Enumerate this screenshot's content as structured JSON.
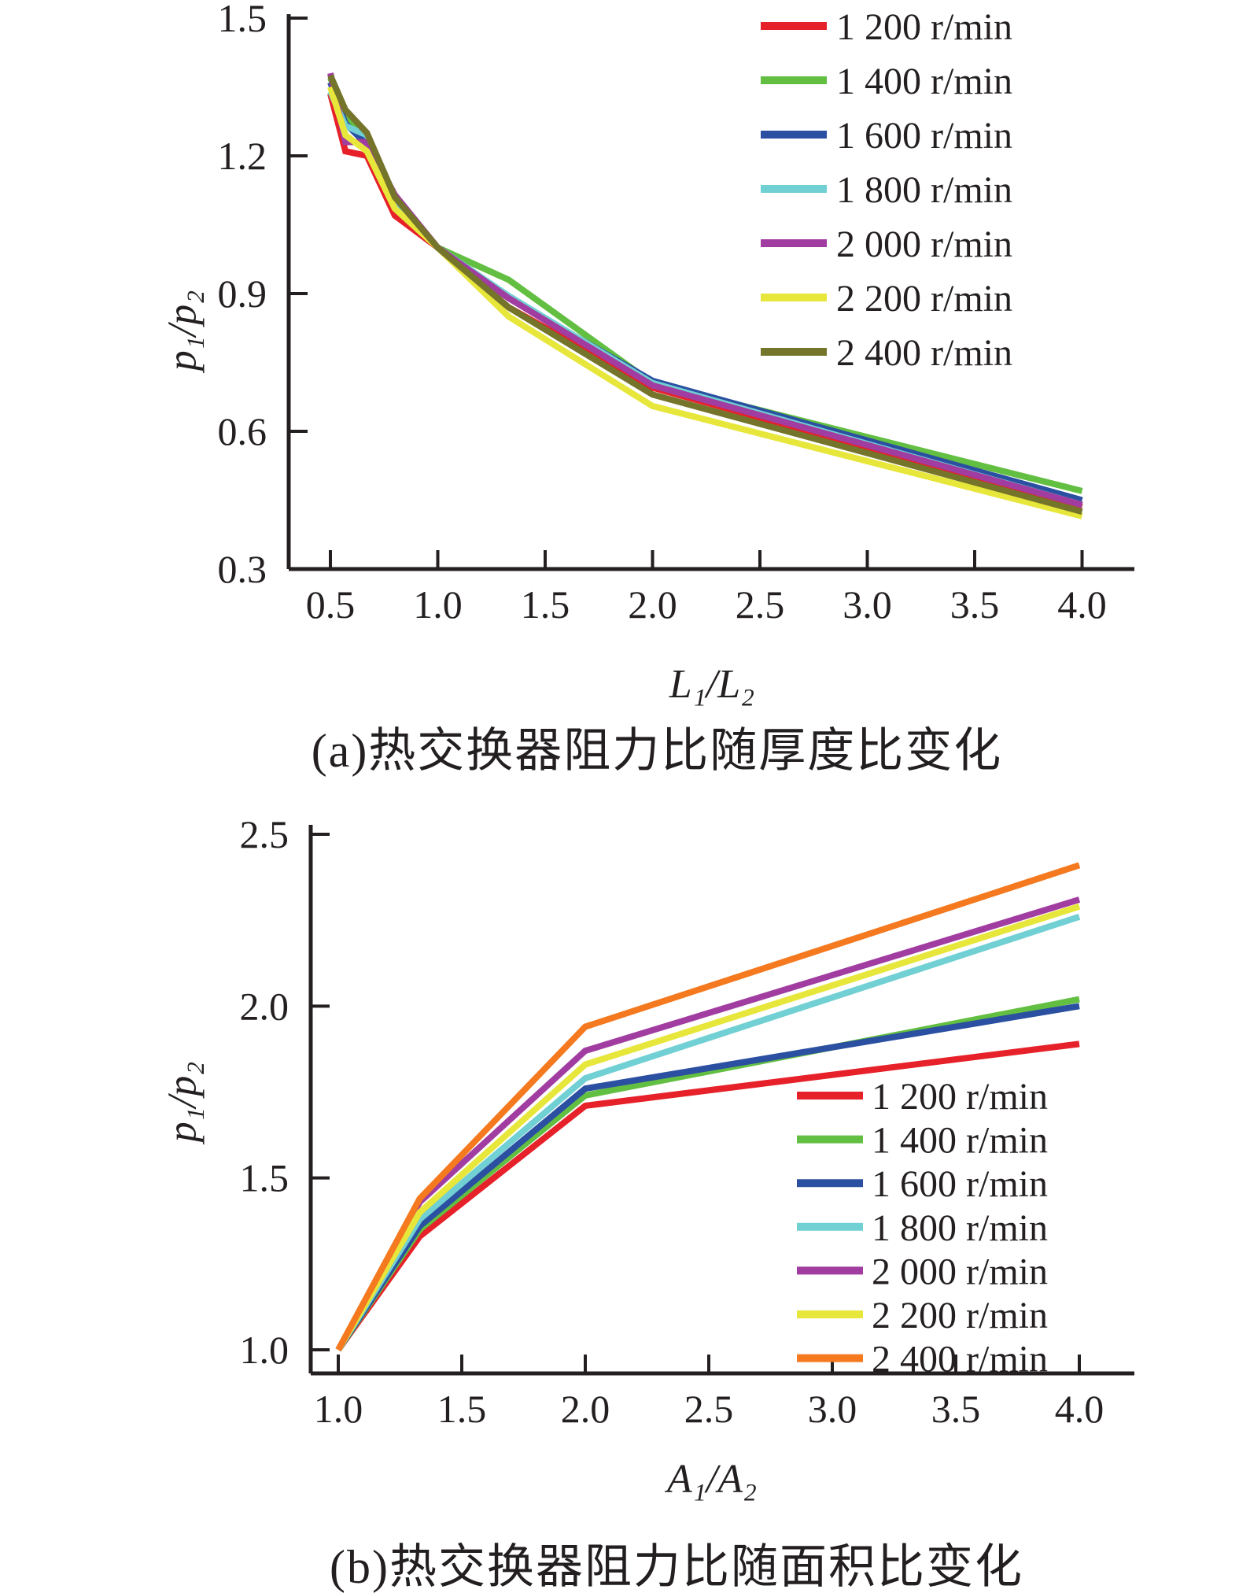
{
  "page": {
    "background": "#ffffff",
    "text_color": "#231f20",
    "axis_color": "#231f20"
  },
  "chart_data": [
    {
      "id": "a",
      "type": "line",
      "caption": "(a)热交换器阻力比随厚度比变化",
      "xlabel": "L₁/L₂",
      "ylabel": "p₁/p₂",
      "xlim": [
        0.31,
        4.24
      ],
      "ylim": [
        0.3,
        1.5
      ],
      "xticks": [
        0.5,
        1.0,
        1.5,
        2.0,
        2.5,
        3.0,
        3.5,
        4.0
      ],
      "xtick_labels": [
        "0.5",
        "1.0",
        "1.5",
        "2.0",
        "2.5",
        "3.0",
        "3.5",
        "4.0"
      ],
      "yticks": [
        1.5,
        1.2,
        0.9,
        0.6,
        0.3
      ],
      "ytick_labels": [
        "1.5",
        "1.2",
        "0.9",
        "0.6",
        "0.3"
      ],
      "grid": false,
      "legend_position": "top-right",
      "x": [
        0.5,
        0.57,
        0.67,
        0.8,
        1.0,
        1.33,
        2.0,
        4.0
      ],
      "series": [
        {
          "name": "1 200 r/min",
          "color": "#e62129",
          "values": [
            1.335,
            1.21,
            1.2,
            1.07,
            1.0,
            0.87,
            0.695,
            0.435
          ]
        },
        {
          "name": "1 400 r/min",
          "color": "#62bf41",
          "values": [
            1.37,
            1.285,
            1.24,
            1.105,
            1.0,
            0.93,
            0.705,
            0.47
          ]
        },
        {
          "name": "1 600 r/min",
          "color": "#2b4fa1",
          "values": [
            1.36,
            1.27,
            1.225,
            1.1,
            1.0,
            0.89,
            0.71,
            0.45
          ]
        },
        {
          "name": "1 800 r/min",
          "color": "#70d0d3",
          "values": [
            1.34,
            1.265,
            1.245,
            1.1,
            1.0,
            0.895,
            0.705,
            0.44
          ]
        },
        {
          "name": "2 000 r/min",
          "color": "#a13da0",
          "values": [
            1.38,
            1.23,
            1.23,
            1.115,
            1.0,
            0.89,
            0.7,
            0.44
          ]
        },
        {
          "name": "2 200 r/min",
          "color": "#e7e63a",
          "values": [
            1.35,
            1.245,
            1.21,
            1.085,
            1.0,
            0.85,
            0.655,
            0.415
          ]
        },
        {
          "name": "2 400 r/min",
          "color": "#74742b",
          "values": [
            1.375,
            1.3,
            1.25,
            1.11,
            1.0,
            0.87,
            0.68,
            0.425
          ]
        }
      ]
    },
    {
      "id": "b",
      "type": "line",
      "caption": "(b)热交换器阻力比随面积比变化",
      "xlabel": "A₁/A₂",
      "ylabel": "p₁/p₂",
      "xlim": [
        0.89,
        4.24
      ],
      "ylim": [
        1.0,
        2.5
      ],
      "xticks": [
        1.0,
        1.5,
        2.0,
        2.5,
        3.0,
        3.5,
        4.0
      ],
      "xtick_labels": [
        "1.0",
        "1.5",
        "2.0",
        "2.5",
        "3.0",
        "3.5",
        "4.0"
      ],
      "yticks": [
        2.5,
        2.0,
        1.5,
        1.0
      ],
      "ytick_labels": [
        "2.5",
        "2.0",
        "1.5",
        "1.0"
      ],
      "grid": false,
      "legend_position": "middle-right",
      "x": [
        1.0,
        1.33,
        2.0,
        4.0
      ],
      "series": [
        {
          "name": "1 200 r/min",
          "color": "#e62129",
          "values": [
            1.0,
            1.33,
            1.71,
            1.89
          ]
        },
        {
          "name": "1 400 r/min",
          "color": "#62bf41",
          "values": [
            1.0,
            1.35,
            1.74,
            2.02
          ]
        },
        {
          "name": "1 600 r/min",
          "color": "#2b4fa1",
          "values": [
            1.0,
            1.36,
            1.76,
            2.0
          ]
        },
        {
          "name": "1 800 r/min",
          "color": "#70d0d3",
          "values": [
            1.0,
            1.38,
            1.79,
            2.26
          ]
        },
        {
          "name": "2 000 r/min",
          "color": "#a13da0",
          "values": [
            1.0,
            1.43,
            1.87,
            2.31
          ]
        },
        {
          "name": "2 200 r/min",
          "color": "#e7e63a",
          "values": [
            1.0,
            1.4,
            1.83,
            2.29
          ]
        },
        {
          "name": "2 400 r/min",
          "color": "#f4791f",
          "values": [
            1.0,
            1.44,
            1.94,
            2.41
          ]
        }
      ]
    }
  ],
  "labels": {
    "chart_a": {
      "xlabel": "L₁/L₂",
      "ylabel": "p₁/p₂",
      "caption": "(a)热交换器阻力比随厚度比变化"
    },
    "chart_b": {
      "xlabel": "A₁/A₂",
      "ylabel": "p₁/p₂",
      "caption": "(b)热交换器阻力比随面积比变化"
    }
  }
}
